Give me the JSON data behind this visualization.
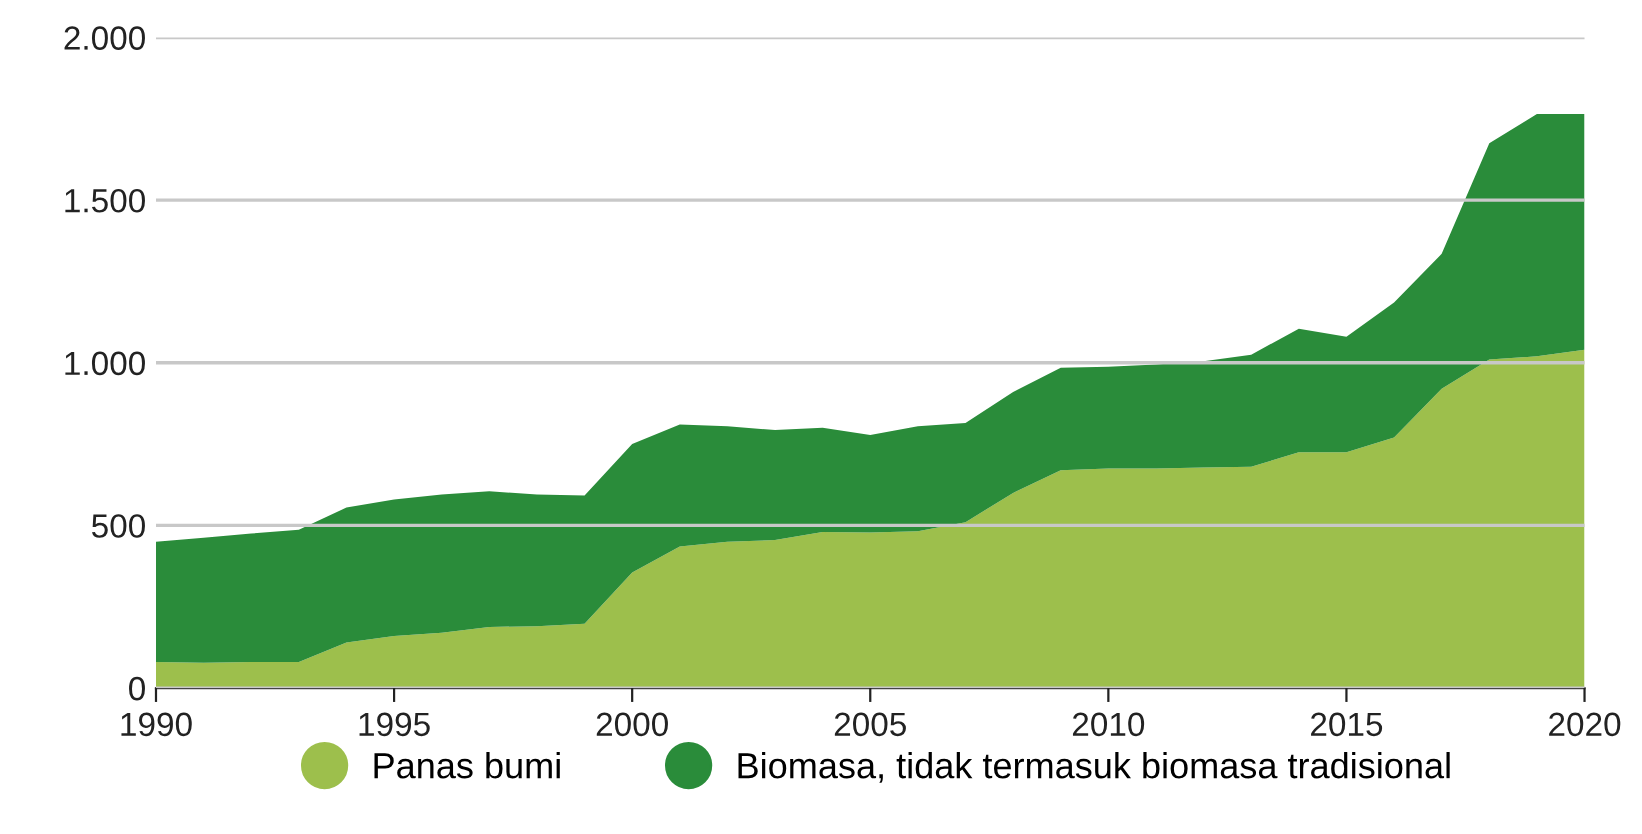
{
  "chart_data": {
    "type": "area",
    "stacked": true,
    "x": [
      1990,
      1991,
      1992,
      1993,
      1994,
      1995,
      1996,
      1997,
      1998,
      1999,
      2000,
      2001,
      2002,
      2003,
      2004,
      2005,
      2006,
      2007,
      2008,
      2009,
      2010,
      2011,
      2012,
      2013,
      2014,
      2015,
      2016,
      2017,
      2018,
      2019,
      2020
    ],
    "series": [
      {
        "name": "Panas bumi",
        "color": "#9dbf4c",
        "values": [
          80,
          78,
          80,
          80,
          140,
          160,
          170,
          188,
          190,
          198,
          355,
          435,
          450,
          455,
          480,
          478,
          482,
          510,
          600,
          670,
          675,
          675,
          678,
          680,
          725,
          725,
          770,
          920,
          1010,
          1020,
          1040
        ]
      },
      {
        "name": "Biomasa, tidak termasuk biomasa tradisional",
        "color": "#2a8c3a",
        "values": [
          370,
          384,
          395,
          407,
          415,
          420,
          425,
          417,
          405,
          394,
          395,
          375,
          355,
          338,
          320,
          300,
          323,
          305,
          310,
          315,
          313,
          320,
          327,
          345,
          380,
          355,
          415,
          415,
          665,
          745,
          725
        ]
      }
    ],
    "xlim": [
      1990,
      2020
    ],
    "xticks": [
      1990,
      1995,
      2000,
      2005,
      2010,
      2015,
      2020
    ],
    "ylim": [
      0,
      2000
    ],
    "yticks": [
      0,
      500,
      {
        "value": 1000,
        "label": "1.000"
      },
      {
        "value": 1500,
        "label": "1.500"
      },
      {
        "value": 2000,
        "label": "2.000"
      }
    ],
    "grid": "y",
    "legend": "bottom"
  }
}
